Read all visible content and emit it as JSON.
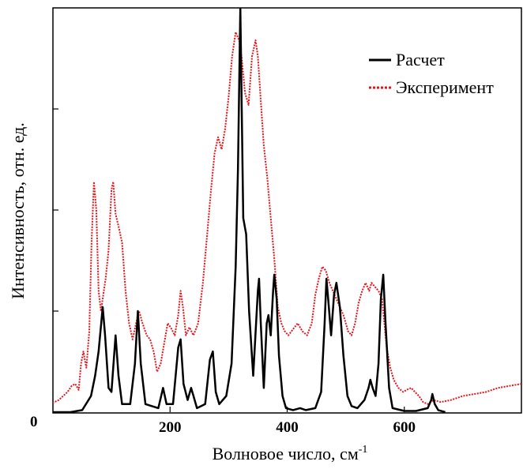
{
  "chart_data": {
    "type": "line",
    "xlabel": "Волновое число, см",
    "xlabel_superscript": "-1",
    "ylabel": "Интенсивность, отн. ед.",
    "xlim": [
      0,
      800
    ],
    "ylim": [
      0,
      1.0
    ],
    "x_ticks": [
      200,
      400,
      600
    ],
    "origin_label": "0",
    "grid": false,
    "legend_position": "top-right",
    "series": [
      {
        "name": "Расчет",
        "color": "#000000",
        "style": "solid",
        "points": [
          [
            0,
            0
          ],
          [
            30,
            0
          ],
          [
            50,
            0.005
          ],
          [
            65,
            0.04
          ],
          [
            72,
            0.09
          ],
          [
            78,
            0.15
          ],
          [
            85,
            0.26
          ],
          [
            89,
            0.19
          ],
          [
            95,
            0.06
          ],
          [
            100,
            0.05
          ],
          [
            107,
            0.19
          ],
          [
            112,
            0.09
          ],
          [
            118,
            0.02
          ],
          [
            132,
            0.02
          ],
          [
            140,
            0.12
          ],
          [
            145,
            0.25
          ],
          [
            150,
            0.12
          ],
          [
            158,
            0.02
          ],
          [
            180,
            0.01
          ],
          [
            188,
            0.06
          ],
          [
            194,
            0.02
          ],
          [
            205,
            0.02
          ],
          [
            214,
            0.16
          ],
          [
            218,
            0.18
          ],
          [
            223,
            0.07
          ],
          [
            230,
            0.03
          ],
          [
            236,
            0.06
          ],
          [
            240,
            0.04
          ],
          [
            246,
            0.01
          ],
          [
            260,
            0.02
          ],
          [
            268,
            0.13
          ],
          [
            273,
            0.15
          ],
          [
            278,
            0.05
          ],
          [
            284,
            0.02
          ],
          [
            296,
            0.04
          ],
          [
            305,
            0.12
          ],
          [
            312,
            0.36
          ],
          [
            316,
            0.6
          ],
          [
            320,
            1.0
          ],
          [
            325,
            0.48
          ],
          [
            330,
            0.44
          ],
          [
            335,
            0.25
          ],
          [
            342,
            0.09
          ],
          [
            350,
            0.3
          ],
          [
            352,
            0.33
          ],
          [
            355,
            0.22
          ],
          [
            360,
            0.06
          ],
          [
            365,
            0.22
          ],
          [
            368,
            0.24
          ],
          [
            372,
            0.19
          ],
          [
            376,
            0.3
          ],
          [
            378,
            0.34
          ],
          [
            382,
            0.28
          ],
          [
            386,
            0.14
          ],
          [
            392,
            0.04
          ],
          [
            398,
            0.01
          ],
          [
            410,
            0.005
          ],
          [
            422,
            0.01
          ],
          [
            432,
            0.005
          ],
          [
            448,
            0.01
          ],
          [
            458,
            0.05
          ],
          [
            464,
            0.22
          ],
          [
            467,
            0.33
          ],
          [
            470,
            0.28
          ],
          [
            475,
            0.19
          ],
          [
            480,
            0.29
          ],
          [
            484,
            0.32
          ],
          [
            490,
            0.26
          ],
          [
            496,
            0.14
          ],
          [
            503,
            0.04
          ],
          [
            510,
            0.015
          ],
          [
            520,
            0.01
          ],
          [
            532,
            0.03
          ],
          [
            539,
            0.06
          ],
          [
            542,
            0.08
          ],
          [
            546,
            0.06
          ],
          [
            551,
            0.04
          ],
          [
            556,
            0.12
          ],
          [
            560,
            0.28
          ],
          [
            564,
            0.34
          ],
          [
            568,
            0.22
          ],
          [
            574,
            0.06
          ],
          [
            580,
            0.01
          ],
          [
            600,
            0.003
          ],
          [
            620,
            0.003
          ],
          [
            640,
            0.01
          ],
          [
            646,
            0.03
          ],
          [
            648,
            0.045
          ],
          [
            652,
            0.02
          ],
          [
            658,
            0.005
          ],
          [
            670,
            0
          ]
        ]
      },
      {
        "name": "Эксперимент",
        "color": "#e8141c",
        "style": "dotted",
        "points": [
          [
            -5,
            0.02
          ],
          [
            10,
            0.03
          ],
          [
            25,
            0.05
          ],
          [
            32,
            0.065
          ],
          [
            38,
            0.07
          ],
          [
            44,
            0.055
          ],
          [
            48,
            0.12
          ],
          [
            52,
            0.15
          ],
          [
            57,
            0.11
          ],
          [
            62,
            0.2
          ],
          [
            66,
            0.42
          ],
          [
            70,
            0.57
          ],
          [
            74,
            0.5
          ],
          [
            78,
            0.3
          ],
          [
            82,
            0.25
          ],
          [
            86,
            0.29
          ],
          [
            90,
            0.33
          ],
          [
            95,
            0.4
          ],
          [
            100,
            0.55
          ],
          [
            103,
            0.57
          ],
          [
            107,
            0.49
          ],
          [
            112,
            0.46
          ],
          [
            118,
            0.42
          ],
          [
            124,
            0.3
          ],
          [
            130,
            0.22
          ],
          [
            136,
            0.18
          ],
          [
            142,
            0.22
          ],
          [
            147,
            0.25
          ],
          [
            153,
            0.22
          ],
          [
            160,
            0.19
          ],
          [
            166,
            0.18
          ],
          [
            172,
            0.15
          ],
          [
            178,
            0.1
          ],
          [
            184,
            0.12
          ],
          [
            190,
            0.17
          ],
          [
            196,
            0.22
          ],
          [
            201,
            0.21
          ],
          [
            208,
            0.19
          ],
          [
            214,
            0.24
          ],
          [
            218,
            0.3
          ],
          [
            222,
            0.26
          ],
          [
            227,
            0.19
          ],
          [
            233,
            0.21
          ],
          [
            240,
            0.19
          ],
          [
            248,
            0.22
          ],
          [
            256,
            0.32
          ],
          [
            264,
            0.45
          ],
          [
            270,
            0.55
          ],
          [
            276,
            0.64
          ],
          [
            282,
            0.68
          ],
          [
            288,
            0.65
          ],
          [
            294,
            0.7
          ],
          [
            300,
            0.78
          ],
          [
            306,
            0.88
          ],
          [
            312,
            0.94
          ],
          [
            318,
            0.92
          ],
          [
            322,
            0.88
          ],
          [
            328,
            0.79
          ],
          [
            334,
            0.76
          ],
          [
            340,
            0.88
          ],
          [
            346,
            0.92
          ],
          [
            350,
            0.88
          ],
          [
            355,
            0.77
          ],
          [
            360,
            0.66
          ],
          [
            366,
            0.58
          ],
          [
            372,
            0.48
          ],
          [
            378,
            0.38
          ],
          [
            384,
            0.26
          ],
          [
            390,
            0.22
          ],
          [
            396,
            0.2
          ],
          [
            402,
            0.19
          ],
          [
            410,
            0.205
          ],
          [
            418,
            0.22
          ],
          [
            426,
            0.2
          ],
          [
            434,
            0.19
          ],
          [
            442,
            0.22
          ],
          [
            448,
            0.29
          ],
          [
            454,
            0.33
          ],
          [
            460,
            0.36
          ],
          [
            466,
            0.35
          ],
          [
            472,
            0.32
          ],
          [
            478,
            0.3
          ],
          [
            484,
            0.28
          ],
          [
            490,
            0.26
          ],
          [
            496,
            0.24
          ],
          [
            504,
            0.2
          ],
          [
            510,
            0.19
          ],
          [
            516,
            0.22
          ],
          [
            522,
            0.27
          ],
          [
            528,
            0.3
          ],
          [
            534,
            0.32
          ],
          [
            540,
            0.3
          ],
          [
            544,
            0.32
          ],
          [
            550,
            0.31
          ],
          [
            556,
            0.3
          ],
          [
            562,
            0.28
          ],
          [
            566,
            0.22
          ],
          [
            570,
            0.16
          ],
          [
            576,
            0.11
          ],
          [
            582,
            0.08
          ],
          [
            590,
            0.06
          ],
          [
            598,
            0.05
          ],
          [
            604,
            0.055
          ],
          [
            612,
            0.06
          ],
          [
            618,
            0.05
          ],
          [
            625,
            0.04
          ],
          [
            632,
            0.025
          ],
          [
            640,
            0.02
          ],
          [
            650,
            0.03
          ],
          [
            662,
            0.025
          ],
          [
            680,
            0.03
          ],
          [
            700,
            0.04
          ],
          [
            720,
            0.045
          ],
          [
            740,
            0.05
          ],
          [
            760,
            0.06
          ],
          [
            780,
            0.065
          ],
          [
            800,
            0.07
          ]
        ]
      }
    ]
  }
}
